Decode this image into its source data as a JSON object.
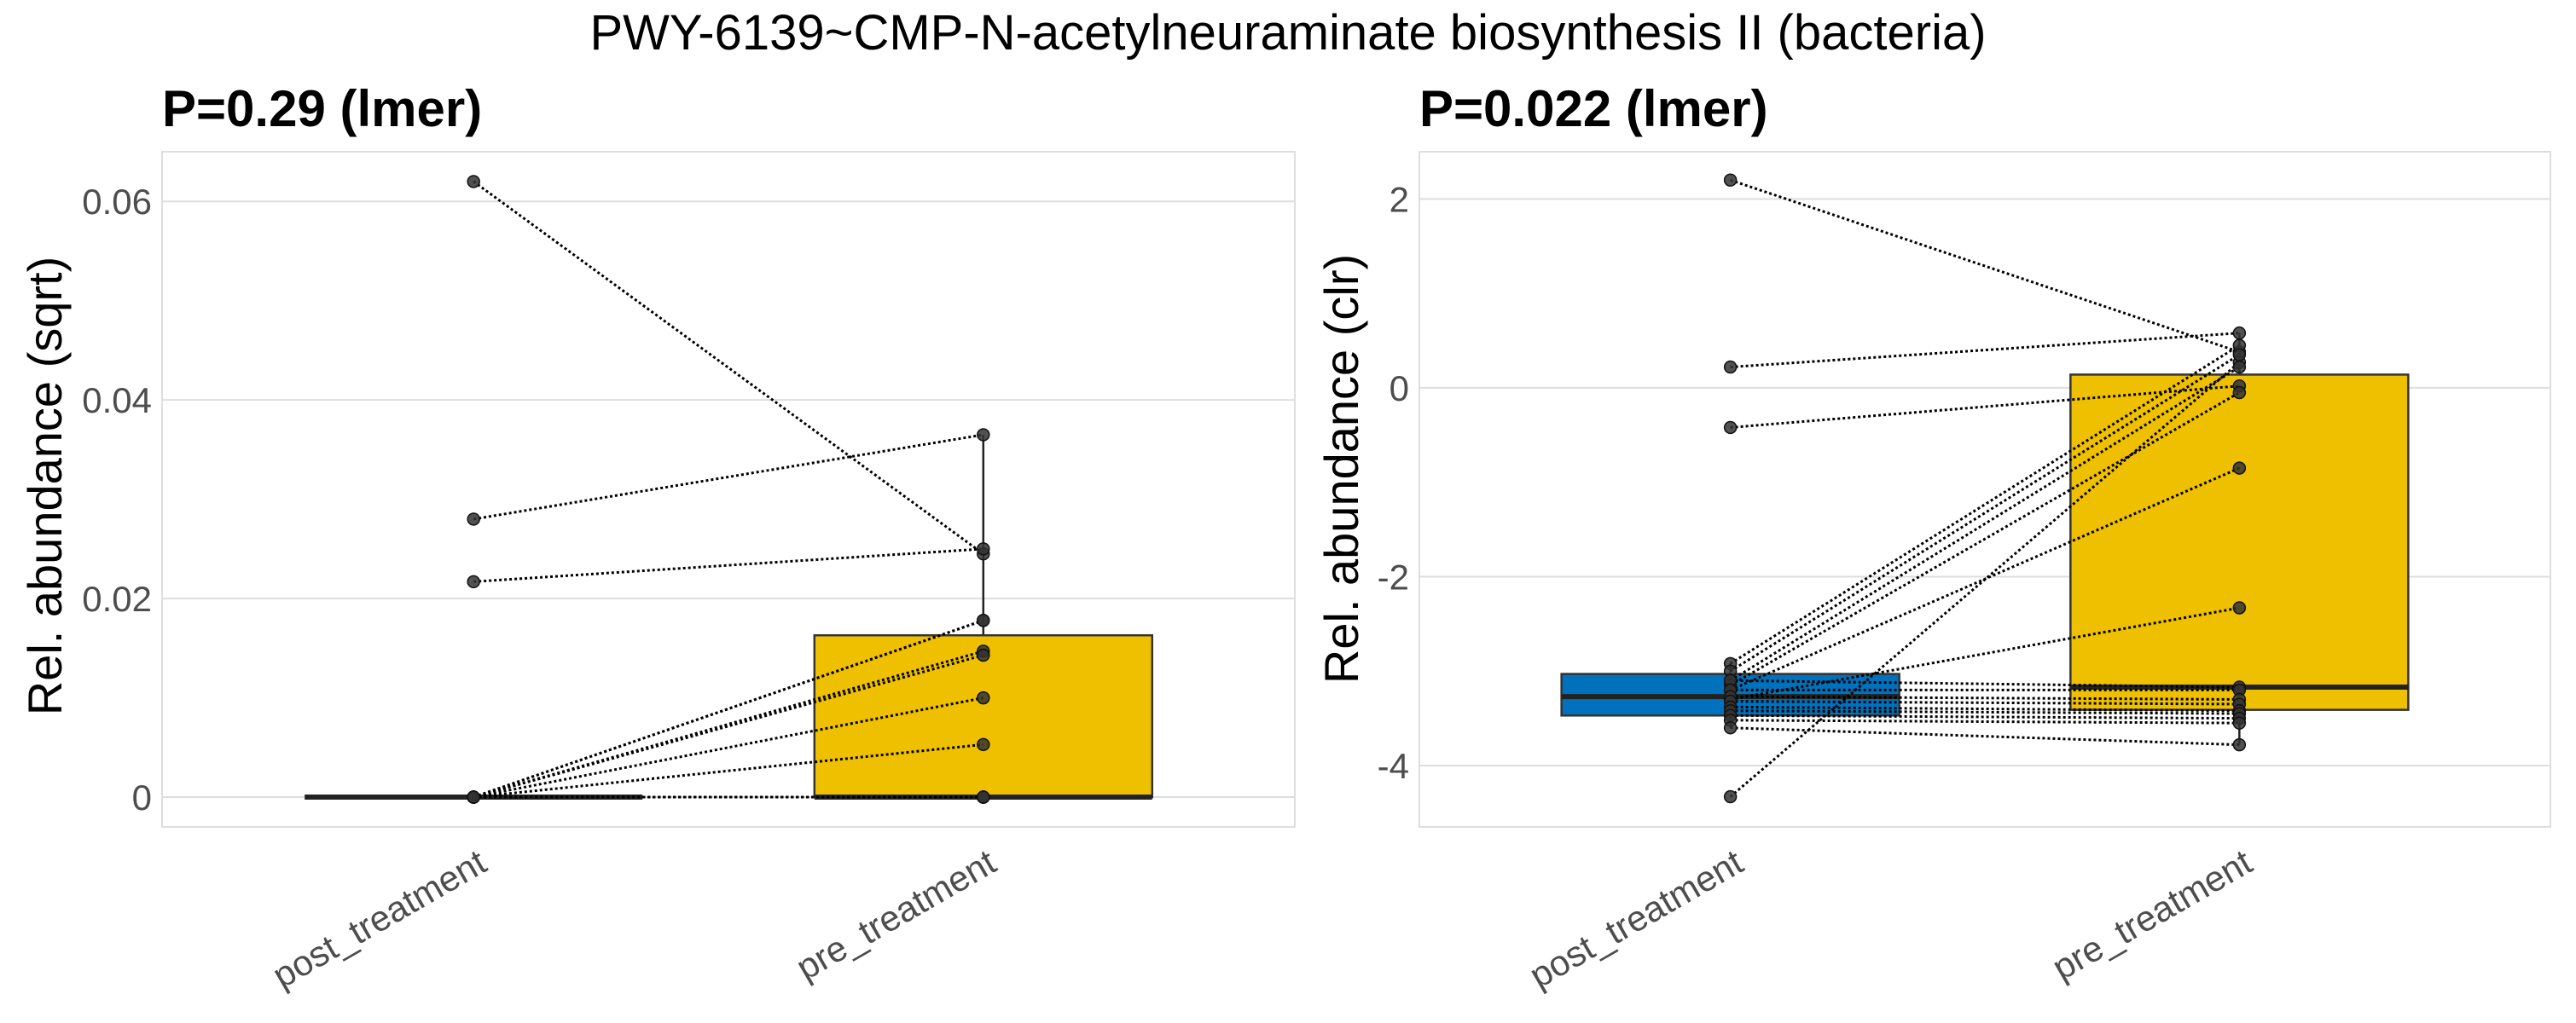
{
  "figure_title": "PWY-6139~CMP-N-acetylneuraminate biosynthesis II (bacteria)",
  "colors": {
    "post_treatment": "#0072BD",
    "pre_treatment": "#EFC000"
  },
  "chart_data": [
    {
      "type": "box",
      "title": "P=0.29 (lmer)",
      "ylabel": "Rel. abundance (sqrt)",
      "xlabel": "",
      "categories": [
        "post_treatment",
        "pre_treatment"
      ],
      "ylim": [
        -0.003,
        0.065
      ],
      "yticks": [
        0,
        0.02,
        0.04,
        0.06
      ],
      "ytick_labels": [
        "0",
        "0.02",
        "0.04",
        "0.06"
      ],
      "grid": true,
      "boxes": [
        {
          "group": "post_treatment",
          "q1": 0,
          "median": 0,
          "q3": 0,
          "lower": 0,
          "upper": 0
        },
        {
          "group": "pre_treatment",
          "q1": 0,
          "median": 0,
          "q3": 0.0163,
          "lower": 0,
          "upper": 0.0365
        }
      ],
      "pairs": [
        [
          0.062,
          0.0245
        ],
        [
          0.028,
          0.0365
        ],
        [
          0.0217,
          0.025
        ],
        [
          0,
          0.0178
        ],
        [
          0,
          0.0178
        ],
        [
          0,
          0.0147
        ],
        [
          0,
          0.0143
        ],
        [
          0,
          0.01
        ],
        [
          0,
          0.0053
        ],
        [
          0,
          0
        ],
        [
          0,
          0
        ],
        [
          0,
          0
        ],
        [
          0,
          0
        ],
        [
          0,
          0
        ],
        [
          0,
          0
        ],
        [
          0,
          0
        ],
        [
          0,
          0
        ],
        [
          0,
          0
        ],
        [
          0,
          0
        ]
      ]
    },
    {
      "type": "box",
      "title": "P=0.022 (lmer)",
      "ylabel": "Rel. abundance (clr)",
      "xlabel": "",
      "categories": [
        "post_treatment",
        "pre_treatment"
      ],
      "ylim": [
        -4.65,
        2.5
      ],
      "yticks": [
        -4,
        -2,
        0,
        2
      ],
      "ytick_labels": [
        "-4",
        "-2",
        "0",
        "2"
      ],
      "grid": true,
      "boxes": [
        {
          "group": "post_treatment",
          "q1": -3.47,
          "median": -3.27,
          "q3": -3.03,
          "lower": -3.6,
          "upper": -2.92
        },
        {
          "group": "pre_treatment",
          "q1": -3.41,
          "median": -3.17,
          "q3": 0.14,
          "lower": -3.78,
          "upper": 0.58
        }
      ],
      "pairs": [
        [
          2.2,
          0.38
        ],
        [
          0.22,
          0.58
        ],
        [
          -0.42,
          0.02
        ],
        [
          -4.33,
          0.27
        ],
        [
          -2.92,
          0.45
        ],
        [
          -3.0,
          0.35
        ],
        [
          -3.1,
          0.22
        ],
        [
          -3.15,
          -0.05
        ],
        [
          -3.2,
          -0.85
        ],
        [
          -3.3,
          -2.33
        ],
        [
          -3.1,
          -3.17
        ],
        [
          -3.2,
          -3.2
        ],
        [
          -3.27,
          -3.3
        ],
        [
          -3.32,
          -3.35
        ],
        [
          -3.38,
          -3.42
        ],
        [
          -3.42,
          -3.45
        ],
        [
          -3.47,
          -3.5
        ],
        [
          -3.52,
          -3.55
        ],
        [
          -3.6,
          -3.78
        ]
      ]
    }
  ]
}
